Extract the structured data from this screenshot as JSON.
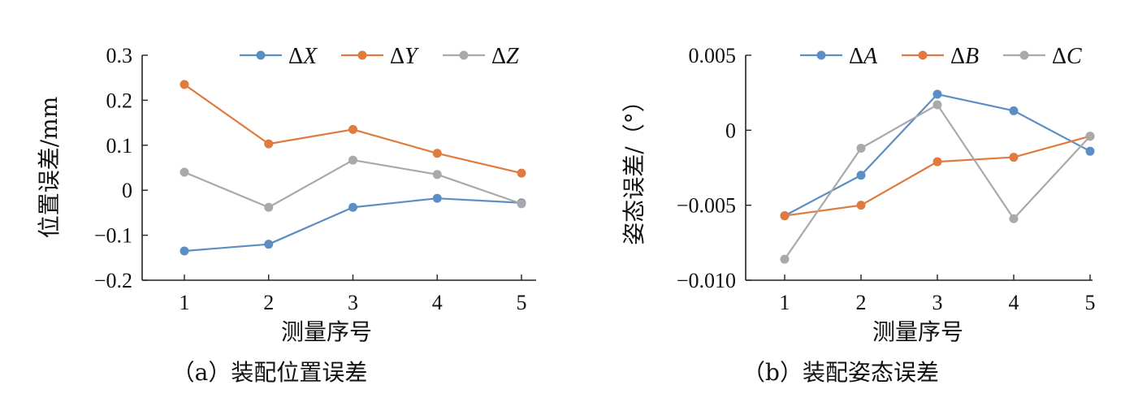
{
  "chart_data": [
    {
      "type": "line",
      "caption": "（a）装配位置误差",
      "xlabel": "测量序号",
      "ylabel": "位置误差/mm",
      "x": [
        1,
        2,
        3,
        4,
        5
      ],
      "x_ticks": [
        "1",
        "2",
        "3",
        "4",
        "5"
      ],
      "ylim": [
        -0.2,
        0.3
      ],
      "y_ticks": [
        0.3,
        0.2,
        0.1,
        0,
        -0.1,
        -0.2
      ],
      "y_tick_labels": [
        "0.3",
        "0.2",
        "0.1",
        "0",
        "−0.1",
        "−0.2"
      ],
      "grid": false,
      "legend_position": "top-right",
      "series": [
        {
          "name": "ΔX",
          "color": "#5B8FC4",
          "values": [
            -0.135,
            -0.12,
            -0.038,
            -0.018,
            -0.028
          ]
        },
        {
          "name": "ΔY",
          "color": "#E07A3E",
          "values": [
            0.235,
            0.103,
            0.135,
            0.082,
            0.038
          ]
        },
        {
          "name": "ΔZ",
          "color": "#A9A9A9",
          "values": [
            0.04,
            -0.038,
            0.067,
            0.035,
            -0.03
          ]
        }
      ]
    },
    {
      "type": "line",
      "caption": "（b）装配姿态误差",
      "xlabel": "测量序号",
      "ylabel": "姿态误差/（°）",
      "x": [
        1,
        2,
        3,
        4,
        5
      ],
      "x_ticks": [
        "1",
        "2",
        "3",
        "4",
        "5"
      ],
      "ylim": [
        -0.01,
        0.005
      ],
      "y_ticks": [
        0.005,
        0,
        -0.005,
        -0.01
      ],
      "y_tick_labels": [
        "0.005",
        "0",
        "−0.005",
        "−0.010"
      ],
      "grid": false,
      "legend_position": "top-right",
      "series": [
        {
          "name": "ΔA",
          "color": "#5B8FC4",
          "values": [
            -0.0057,
            -0.003,
            0.0024,
            0.0013,
            -0.0014
          ]
        },
        {
          "name": "ΔB",
          "color": "#E07A3E",
          "values": [
            -0.0057,
            -0.005,
            -0.0021,
            -0.0018,
            -0.0004
          ]
        },
        {
          "name": "ΔC",
          "color": "#A9A9A9",
          "values": [
            -0.0086,
            -0.0012,
            0.0017,
            -0.0059,
            -0.0004
          ]
        }
      ]
    }
  ]
}
